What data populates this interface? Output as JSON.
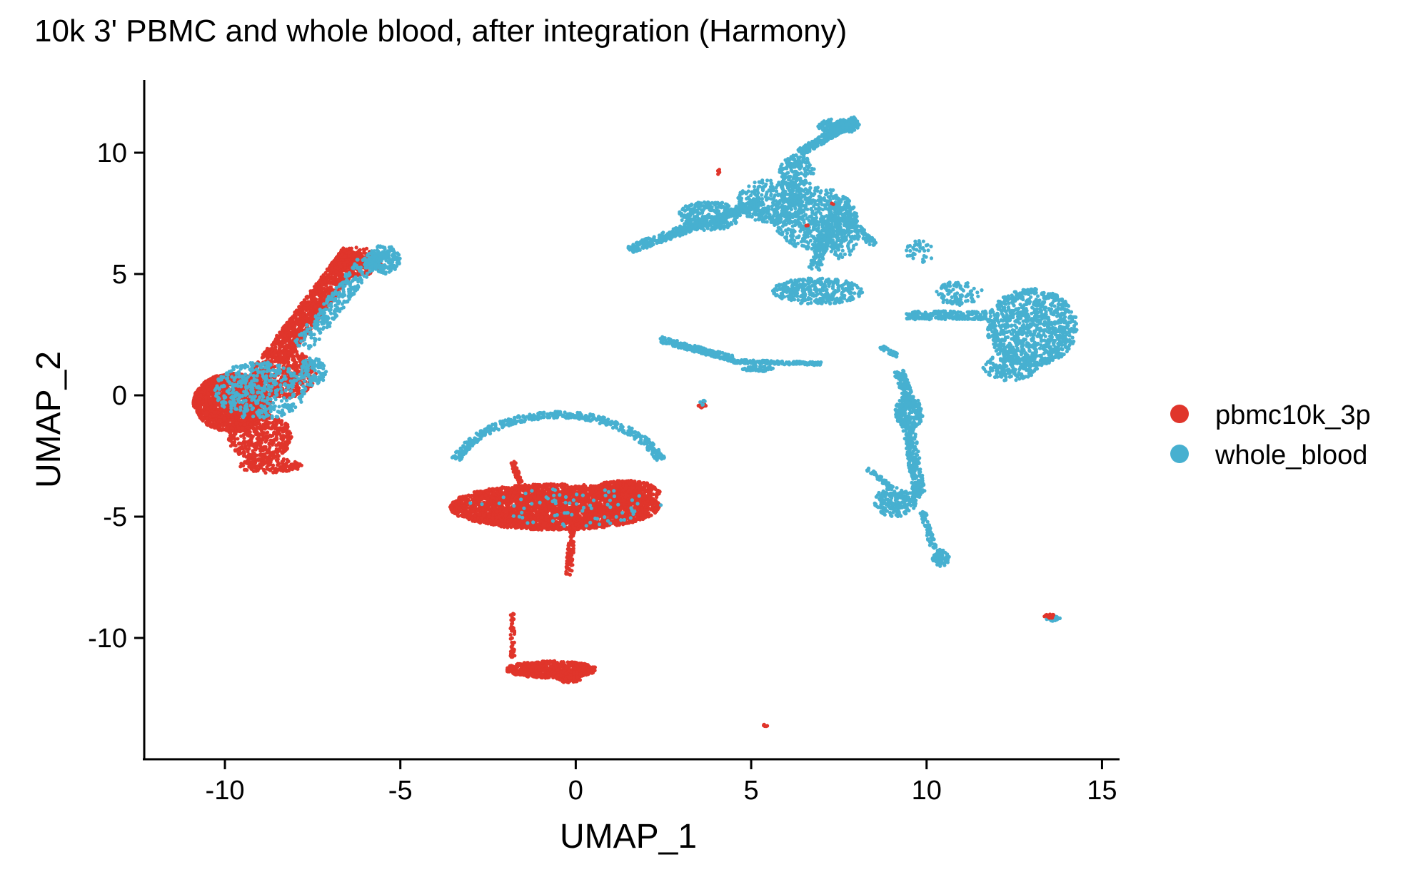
{
  "chart_data": {
    "type": "scatter",
    "title": "10k 3' PBMC and whole blood, after integration (Harmony)",
    "xlabel": "UMAP_1",
    "ylabel": "UMAP_2",
    "xlim": [
      -12.3,
      15.5
    ],
    "ylim": [
      -15,
      13
    ],
    "xticks": [
      -10,
      -5,
      0,
      5,
      10,
      15
    ],
    "yticks": [
      -10,
      -5,
      0,
      5,
      10
    ],
    "grid": false,
    "legend_position": "right",
    "series": [
      {
        "name": "pbmc10k_3p",
        "color": "#E0352B"
      },
      {
        "name": "whole_blood",
        "color": "#47B0D0"
      }
    ],
    "clusters": [
      {
        "series": "pbmc10k_3p",
        "type": "ellipse",
        "cx": -9.8,
        "cy": -0.3,
        "rx": 1.1,
        "ry": 1.2,
        "n": 1700
      },
      {
        "series": "pbmc10k_3p",
        "type": "ellipse",
        "cx": -9.0,
        "cy": -1.7,
        "rx": 0.9,
        "ry": 1.0,
        "n": 500
      },
      {
        "series": "pbmc10k_3p",
        "type": "ellipse",
        "cx": -8.7,
        "cy": -2.9,
        "rx": 0.9,
        "ry": 0.3,
        "n": 150
      },
      {
        "series": "pbmc10k_3p",
        "type": "ellipse",
        "cx": -8.3,
        "cy": 0.9,
        "rx": 0.9,
        "ry": 1.0,
        "n": 500
      },
      {
        "series": "pbmc10k_3p",
        "type": "segment",
        "x1": -8.6,
        "y1": 1.5,
        "x2": -6.3,
        "y2": 5.9,
        "w": 0.75,
        "n": 1100
      },
      {
        "series": "pbmc10k_3p",
        "type": "ellipse",
        "cx": -6.2,
        "cy": 5.5,
        "rx": 0.7,
        "ry": 0.6,
        "n": 250
      },
      {
        "series": "whole_blood",
        "type": "ellipse",
        "cx": -9.0,
        "cy": 0.2,
        "rx": 1.3,
        "ry": 1.2,
        "n": 420
      },
      {
        "series": "whole_blood",
        "type": "ellipse",
        "cx": -7.5,
        "cy": 1.0,
        "rx": 0.4,
        "ry": 0.6,
        "n": 100
      },
      {
        "series": "whole_blood",
        "type": "segment",
        "x1": -7.8,
        "y1": 2.0,
        "x2": -5.9,
        "y2": 5.6,
        "w": 0.6,
        "n": 260
      },
      {
        "series": "whole_blood",
        "type": "ellipse",
        "cx": -5.5,
        "cy": 5.6,
        "rx": 0.5,
        "ry": 0.6,
        "n": 180
      },
      {
        "series": "pbmc10k_3p",
        "type": "ellipse",
        "cx": -0.6,
        "cy": -4.6,
        "rx": 3.0,
        "ry": 0.95,
        "n": 3200
      },
      {
        "series": "pbmc10k_3p",
        "type": "ellipse",
        "cx": 1.4,
        "cy": -4.0,
        "rx": 1.0,
        "ry": 0.5,
        "n": 500
      },
      {
        "series": "pbmc10k_3p",
        "type": "segment",
        "x1": -0.1,
        "y1": -5.4,
        "x2": -0.2,
        "y2": -7.4,
        "w": 0.18,
        "n": 90
      },
      {
        "series": "pbmc10k_3p",
        "type": "segment",
        "x1": -1.8,
        "y1": -2.7,
        "x2": -1.6,
        "y2": -3.6,
        "w": 0.15,
        "n": 40
      },
      {
        "series": "whole_blood",
        "type": "arc",
        "cx": -0.5,
        "cy": -3.6,
        "rx": 3.1,
        "ry": 2.8,
        "a1": 20,
        "a2": 160,
        "w": 0.14,
        "n": 450
      },
      {
        "series": "whole_blood",
        "type": "ellipse",
        "cx": -0.3,
        "cy": -4.6,
        "rx": 2.8,
        "ry": 0.8,
        "n": 80
      },
      {
        "series": "pbmc10k_3p",
        "type": "segment",
        "x1": -1.8,
        "y1": -9.0,
        "x2": -1.8,
        "y2": -10.8,
        "w": 0.12,
        "n": 45
      },
      {
        "series": "pbmc10k_3p",
        "type": "ellipse",
        "cx": -0.7,
        "cy": -11.3,
        "rx": 1.3,
        "ry": 0.35,
        "n": 650
      },
      {
        "series": "pbmc10k_3p",
        "type": "ellipse",
        "cx": -0.2,
        "cy": -11.6,
        "rx": 0.4,
        "ry": 0.25,
        "n": 120
      },
      {
        "series": "pbmc10k_3p",
        "type": "ellipse",
        "cx": 5.4,
        "cy": -13.6,
        "rx": 0.07,
        "ry": 0.07,
        "n": 8
      },
      {
        "series": "pbmc10k_3p",
        "type": "ellipse",
        "cx": 3.6,
        "cy": -0.4,
        "rx": 0.12,
        "ry": 0.12,
        "n": 14
      },
      {
        "series": "whole_blood",
        "type": "ellipse",
        "cx": 3.6,
        "cy": -0.3,
        "rx": 0.1,
        "ry": 0.1,
        "n": 6
      },
      {
        "series": "whole_blood",
        "type": "segment",
        "x1": 1.5,
        "y1": 6.0,
        "x2": 5.3,
        "y2": 8.0,
        "w": 0.35,
        "n": 450
      },
      {
        "series": "whole_blood",
        "type": "ellipse",
        "cx": 3.8,
        "cy": 7.4,
        "rx": 0.9,
        "ry": 0.6,
        "n": 250
      },
      {
        "series": "whole_blood",
        "type": "ellipse",
        "cx": 5.6,
        "cy": 8.0,
        "rx": 1.0,
        "ry": 0.9,
        "n": 320
      },
      {
        "series": "whole_blood",
        "type": "ellipse",
        "cx": 6.8,
        "cy": 7.3,
        "rx": 1.2,
        "ry": 1.3,
        "n": 600
      },
      {
        "series": "whole_blood",
        "type": "ellipse",
        "cx": 6.3,
        "cy": 9.2,
        "rx": 0.5,
        "ry": 0.7,
        "n": 160
      },
      {
        "series": "whole_blood",
        "type": "segment",
        "x1": 6.4,
        "y1": 10.0,
        "x2": 8.0,
        "y2": 11.4,
        "w": 0.3,
        "n": 250
      },
      {
        "series": "whole_blood",
        "type": "ellipse",
        "cx": 7.5,
        "cy": 11.1,
        "rx": 0.6,
        "ry": 0.3,
        "n": 150
      },
      {
        "series": "whole_blood",
        "type": "ellipse",
        "cx": 7.6,
        "cy": 6.8,
        "rx": 0.5,
        "ry": 1.2,
        "n": 200
      },
      {
        "series": "whole_blood",
        "type": "segment",
        "x1": 7.6,
        "y1": 7.5,
        "x2": 8.5,
        "y2": 6.2,
        "w": 0.25,
        "n": 90
      },
      {
        "series": "whole_blood",
        "type": "ellipse",
        "cx": 6.9,
        "cy": 4.3,
        "rx": 1.3,
        "ry": 0.55,
        "n": 350
      },
      {
        "series": "whole_blood",
        "type": "segment",
        "x1": 6.8,
        "y1": 5.2,
        "x2": 7.2,
        "y2": 7.0,
        "w": 0.35,
        "n": 120
      },
      {
        "series": "whole_blood",
        "type": "segment",
        "x1": 2.4,
        "y1": 2.3,
        "x2": 4.5,
        "y2": 1.5,
        "w": 0.25,
        "n": 220
      },
      {
        "series": "whole_blood",
        "type": "segment",
        "x1": 4.5,
        "y1": 1.4,
        "x2": 7.0,
        "y2": 1.3,
        "w": 0.14,
        "n": 180
      },
      {
        "series": "whole_blood",
        "type": "ellipse",
        "cx": 5.2,
        "cy": 1.1,
        "rx": 0.45,
        "ry": 0.12,
        "n": 60
      },
      {
        "series": "whole_blood",
        "type": "ellipse",
        "cx": 13.0,
        "cy": 2.8,
        "rx": 1.3,
        "ry": 1.6,
        "n": 1000
      },
      {
        "series": "whole_blood",
        "type": "ellipse",
        "cx": 12.4,
        "cy": 1.2,
        "rx": 0.8,
        "ry": 0.6,
        "n": 180
      },
      {
        "series": "whole_blood",
        "type": "segment",
        "x1": 9.4,
        "y1": 3.3,
        "x2": 11.7,
        "y2": 3.3,
        "w": 0.35,
        "n": 200
      },
      {
        "series": "whole_blood",
        "type": "ellipse",
        "cx": 10.9,
        "cy": 4.2,
        "rx": 0.7,
        "ry": 0.5,
        "n": 100
      },
      {
        "series": "whole_blood",
        "type": "ellipse",
        "cx": 9.8,
        "cy": 5.9,
        "rx": 0.4,
        "ry": 0.5,
        "n": 40
      },
      {
        "series": "whole_blood",
        "type": "segment",
        "x1": 8.7,
        "y1": 2.0,
        "x2": 9.2,
        "y2": 1.6,
        "w": 0.15,
        "n": 30
      },
      {
        "series": "whole_blood",
        "type": "segment",
        "x1": 9.2,
        "y1": 1.0,
        "x2": 9.6,
        "y2": -0.5,
        "w": 0.3,
        "n": 120
      },
      {
        "series": "whole_blood",
        "type": "ellipse",
        "cx": 9.5,
        "cy": -0.7,
        "rx": 0.4,
        "ry": 0.7,
        "n": 200
      },
      {
        "series": "whole_blood",
        "type": "segment",
        "x1": 9.5,
        "y1": -1.4,
        "x2": 9.8,
        "y2": -4.2,
        "w": 0.35,
        "n": 250
      },
      {
        "series": "whole_blood",
        "type": "ellipse",
        "cx": 9.1,
        "cy": -4.4,
        "rx": 0.6,
        "ry": 0.6,
        "n": 200
      },
      {
        "series": "whole_blood",
        "type": "segment",
        "x1": 8.3,
        "y1": -3.0,
        "x2": 9.0,
        "y2": -3.8,
        "w": 0.15,
        "n": 40
      },
      {
        "series": "whole_blood",
        "type": "segment",
        "x1": 9.9,
        "y1": -4.8,
        "x2": 10.2,
        "y2": -6.3,
        "w": 0.18,
        "n": 60
      },
      {
        "series": "whole_blood",
        "type": "ellipse",
        "cx": 10.4,
        "cy": -6.7,
        "rx": 0.25,
        "ry": 0.35,
        "n": 70
      },
      {
        "series": "whole_blood",
        "type": "ellipse",
        "cx": 13.6,
        "cy": -9.2,
        "rx": 0.2,
        "ry": 0.12,
        "n": 30
      },
      {
        "series": "pbmc10k_3p",
        "type": "ellipse",
        "cx": 13.5,
        "cy": -9.1,
        "rx": 0.15,
        "ry": 0.1,
        "n": 18
      },
      {
        "series": "pbmc10k_3p",
        "type": "ellipse",
        "cx": 4.1,
        "cy": 9.2,
        "rx": 0.08,
        "ry": 0.12,
        "n": 6
      },
      {
        "series": "pbmc10k_3p",
        "type": "ellipse",
        "cx": 7.3,
        "cy": 7.9,
        "rx": 0.05,
        "ry": 0.05,
        "n": 2
      },
      {
        "series": "pbmc10k_3p",
        "type": "ellipse",
        "cx": 6.6,
        "cy": 7.0,
        "rx": 0.05,
        "ry": 0.05,
        "n": 2
      }
    ]
  }
}
